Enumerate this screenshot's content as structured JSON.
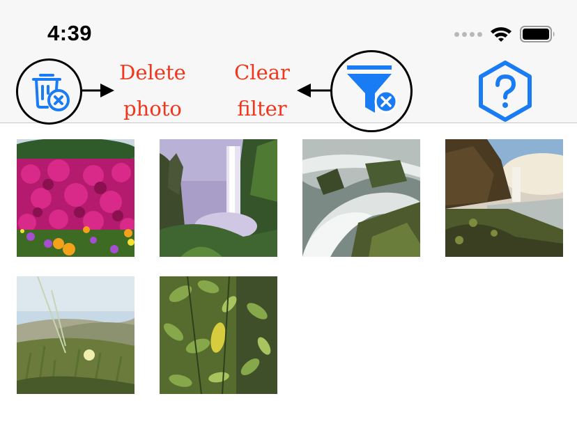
{
  "status_bar": {
    "time": "4:39"
  },
  "toolbar": {
    "delete_icon": "trash-with-x-icon",
    "filter_icon": "filter-with-x-icon",
    "help_icon": "question-hexagon-icon",
    "accent_color": "#1a7cf5"
  },
  "annotations": {
    "delete_line1": "Delete",
    "delete_line2": "photo",
    "filter_line1": "Clear",
    "filter_line2": "filter",
    "color": "#f2351b"
  },
  "photos": [
    {
      "subject": "flowers"
    },
    {
      "subject": "waterfall"
    },
    {
      "subject": "rapids"
    },
    {
      "subject": "coastal-falls"
    },
    {
      "subject": "dunes"
    },
    {
      "subject": "leaves"
    }
  ]
}
